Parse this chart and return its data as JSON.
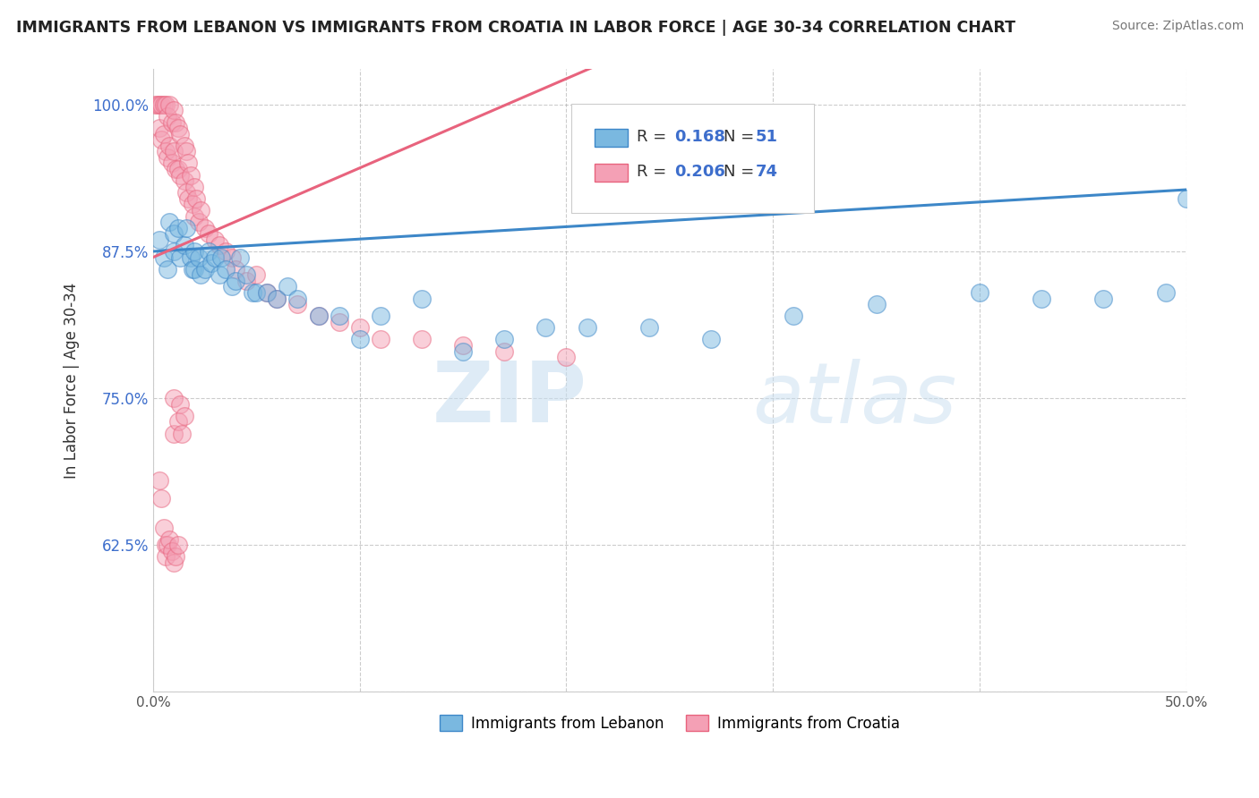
{
  "title": "IMMIGRANTS FROM LEBANON VS IMMIGRANTS FROM CROATIA IN LABOR FORCE | AGE 30-34 CORRELATION CHART",
  "source": "Source: ZipAtlas.com",
  "ylabel": "In Labor Force | Age 30-34",
  "xlim": [
    0.0,
    0.5
  ],
  "ylim": [
    0.5,
    1.03
  ],
  "xticks": [
    0.0,
    0.1,
    0.2,
    0.3,
    0.4,
    0.5
  ],
  "yticks": [
    0.5,
    0.625,
    0.75,
    0.875,
    1.0
  ],
  "color_lebanon": "#7ab8e0",
  "color_croatia": "#f4a0b5",
  "color_lebanon_line": "#3d87c8",
  "color_croatia_line": "#e8637d",
  "color_text_val": "#3d6ecc",
  "background": "#ffffff",
  "lebanon_r": "0.168",
  "lebanon_n": "51",
  "croatia_r": "0.206",
  "croatia_n": "74",
  "lebanon_label": "Immigrants from Lebanon",
  "croatia_label": "Immigrants from Croatia",
  "lebanon_x": [
    0.003,
    0.005,
    0.007,
    0.008,
    0.01,
    0.01,
    0.012,
    0.013,
    0.015,
    0.016,
    0.018,
    0.019,
    0.02,
    0.02,
    0.022,
    0.023,
    0.025,
    0.027,
    0.028,
    0.03,
    0.032,
    0.033,
    0.035,
    0.038,
    0.04,
    0.042,
    0.045,
    0.048,
    0.05,
    0.055,
    0.06,
    0.065,
    0.07,
    0.08,
    0.09,
    0.1,
    0.11,
    0.13,
    0.15,
    0.17,
    0.19,
    0.21,
    0.24,
    0.27,
    0.31,
    0.35,
    0.4,
    0.43,
    0.46,
    0.49,
    0.5
  ],
  "lebanon_y": [
    0.885,
    0.87,
    0.86,
    0.9,
    0.875,
    0.89,
    0.895,
    0.87,
    0.88,
    0.895,
    0.87,
    0.86,
    0.875,
    0.86,
    0.87,
    0.855,
    0.86,
    0.875,
    0.865,
    0.87,
    0.855,
    0.87,
    0.86,
    0.845,
    0.85,
    0.87,
    0.855,
    0.84,
    0.84,
    0.84,
    0.835,
    0.845,
    0.835,
    0.82,
    0.82,
    0.8,
    0.82,
    0.835,
    0.79,
    0.8,
    0.81,
    0.81,
    0.81,
    0.8,
    0.82,
    0.83,
    0.84,
    0.835,
    0.835,
    0.84,
    0.92
  ],
  "croatia_x": [
    0.001,
    0.002,
    0.003,
    0.003,
    0.004,
    0.004,
    0.005,
    0.005,
    0.006,
    0.006,
    0.007,
    0.007,
    0.008,
    0.008,
    0.009,
    0.009,
    0.01,
    0.01,
    0.011,
    0.011,
    0.012,
    0.012,
    0.013,
    0.013,
    0.015,
    0.015,
    0.016,
    0.016,
    0.017,
    0.017,
    0.018,
    0.019,
    0.02,
    0.02,
    0.021,
    0.022,
    0.023,
    0.025,
    0.027,
    0.03,
    0.032,
    0.035,
    0.038,
    0.04,
    0.045,
    0.05,
    0.055,
    0.06,
    0.07,
    0.08,
    0.09,
    0.1,
    0.11,
    0.13,
    0.15,
    0.17,
    0.2,
    0.01,
    0.01,
    0.012,
    0.013,
    0.014,
    0.015,
    0.003,
    0.004,
    0.005,
    0.006,
    0.006,
    0.007,
    0.008,
    0.009,
    0.01,
    0.011,
    0.012
  ],
  "croatia_y": [
    1.0,
    1.0,
    1.0,
    0.98,
    1.0,
    0.97,
    1.0,
    0.975,
    1.0,
    0.96,
    0.99,
    0.955,
    1.0,
    0.965,
    0.985,
    0.95,
    0.995,
    0.96,
    0.985,
    0.945,
    0.98,
    0.945,
    0.975,
    0.94,
    0.965,
    0.935,
    0.96,
    0.925,
    0.95,
    0.92,
    0.94,
    0.915,
    0.93,
    0.905,
    0.92,
    0.9,
    0.91,
    0.895,
    0.89,
    0.885,
    0.88,
    0.875,
    0.87,
    0.86,
    0.85,
    0.855,
    0.84,
    0.835,
    0.83,
    0.82,
    0.815,
    0.81,
    0.8,
    0.8,
    0.795,
    0.79,
    0.785,
    0.75,
    0.72,
    0.73,
    0.745,
    0.72,
    0.735,
    0.68,
    0.665,
    0.64,
    0.625,
    0.615,
    0.625,
    0.63,
    0.62,
    0.61,
    0.615,
    0.625
  ]
}
